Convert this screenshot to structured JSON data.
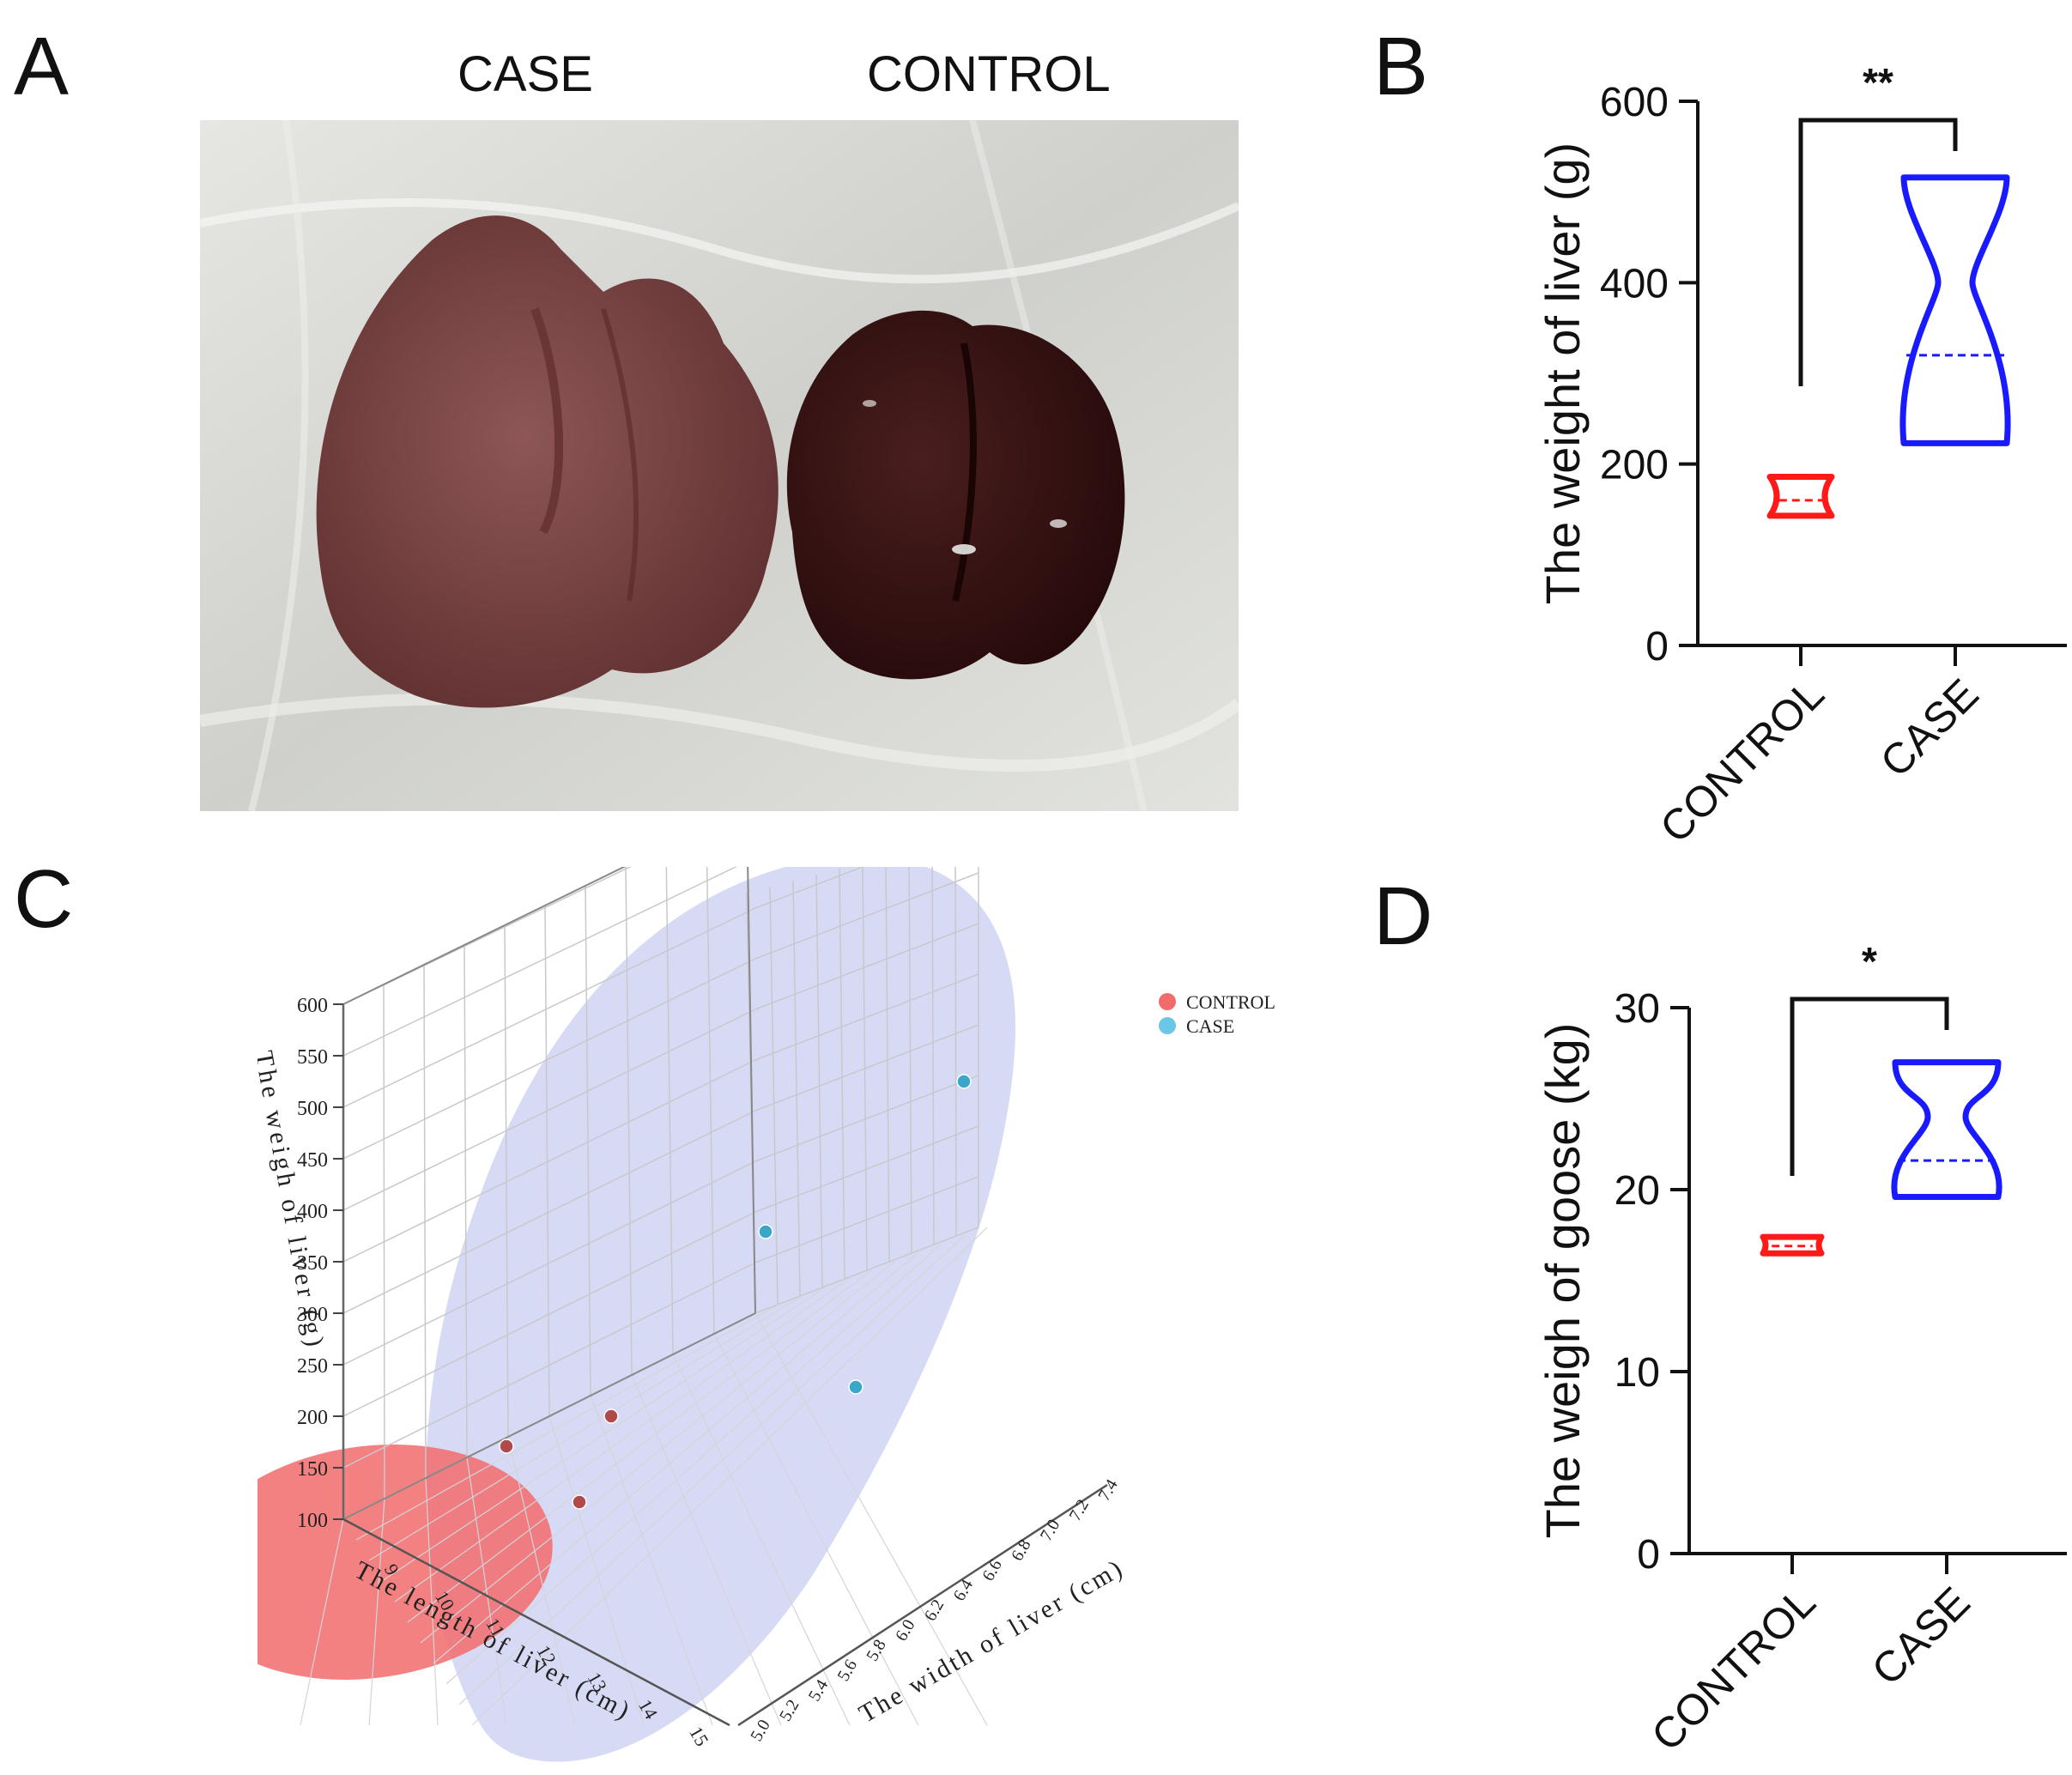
{
  "panels": {
    "a": "A",
    "b": "B",
    "c": "C",
    "d": "D"
  },
  "panel_a": {
    "label_case": "CASE",
    "label_control": "CONTROL"
  },
  "colors": {
    "control": "#ff1a1a",
    "case": "#1a1aff",
    "control_blob": "#f26b6b",
    "case_blob": "#c9cdf2",
    "case_point": "#3aa6c8",
    "control_point": "#b04a4a"
  },
  "chart_data": [
    {
      "id": "B",
      "type": "violin",
      "ylabel": "The weight of liver (g)",
      "categories": [
        "CONTROL",
        "CASE"
      ],
      "yticks": [
        0,
        200,
        400,
        600
      ],
      "ylim": [
        0,
        600
      ],
      "significance": "**",
      "series": [
        {
          "name": "CONTROL",
          "min": 143,
          "max": 186,
          "median": 160,
          "wide_at": [
            147,
            182
          ]
        },
        {
          "name": "CASE",
          "min": 223,
          "max": 516,
          "median": 320,
          "narrow_at": 400
        }
      ]
    },
    {
      "id": "D",
      "type": "violin",
      "ylabel": "The weigh of goose (kg)",
      "categories": [
        "CONTROL",
        "CASE"
      ],
      "yticks": [
        0,
        10,
        20,
        30
      ],
      "ylim": [
        0,
        30
      ],
      "significance": "*",
      "series": [
        {
          "name": "CONTROL",
          "min": 16.5,
          "max": 17.4,
          "median": 16.9
        },
        {
          "name": "CASE",
          "min": 19.6,
          "max": 27.0,
          "median": 21.6,
          "narrow_at": 24
        }
      ]
    },
    {
      "id": "C",
      "type": "scatter3d",
      "zlabel": "The weigh of liver (g)",
      "xlabel": "The length of liver (cm)",
      "ylabel": "The width of liver (cm)",
      "zticks": [
        "100",
        "150",
        "200",
        "250",
        "300",
        "350",
        "400",
        "450",
        "500",
        "550",
        "600"
      ],
      "xticks": [
        "9",
        "10",
        "11",
        "12",
        "13",
        "14",
        "15"
      ],
      "yticks": [
        "5.0",
        "5.2",
        "5.4",
        "5.6",
        "5.8",
        "6.0",
        "6.2",
        "6.4",
        "6.6",
        "6.8",
        "7.0",
        "7.2",
        "7.4"
      ],
      "legend": [
        "CONTROL",
        "CASE"
      ],
      "series": [
        {
          "name": "CONTROL",
          "points": [
            [
              11.0,
              5.6,
              150
            ],
            [
              12.5,
              5.3,
              110
            ],
            [
              12.8,
              6.0,
              170
            ]
          ]
        },
        {
          "name": "CASE",
          "points": [
            [
              10.5,
              7.0,
              520
            ],
            [
              12.0,
              6.8,
              370
            ],
            [
              13.0,
              6.5,
              230
            ]
          ]
        }
      ]
    }
  ]
}
